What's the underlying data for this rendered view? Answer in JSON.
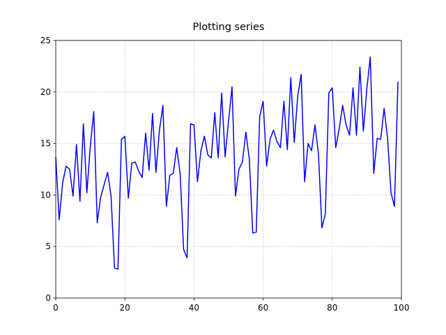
{
  "chart_data": {
    "type": "line",
    "title": "Plotting series",
    "x": [
      0,
      1,
      2,
      3,
      4,
      5,
      6,
      7,
      8,
      9,
      10,
      11,
      12,
      13,
      14,
      15,
      16,
      17,
      18,
      19,
      20,
      21,
      22,
      23,
      24,
      25,
      26,
      27,
      28,
      29,
      30,
      31,
      32,
      33,
      34,
      35,
      36,
      37,
      38,
      39,
      40,
      41,
      42,
      43,
      44,
      45,
      46,
      47,
      48,
      49,
      50,
      51,
      52,
      53,
      54,
      55,
      56,
      57,
      58,
      59,
      60,
      61,
      62,
      63,
      64,
      65,
      66,
      67,
      68,
      69,
      70,
      71,
      72,
      73,
      74,
      75,
      76,
      77,
      78,
      79,
      80,
      81,
      82,
      83,
      84,
      85,
      86,
      87,
      88,
      89,
      90,
      91,
      92,
      93,
      94,
      95,
      96,
      97,
      98,
      99
    ],
    "values": [
      13.7,
      7.6,
      11.2,
      12.8,
      12.5,
      9.9,
      14.9,
      9.4,
      16.9,
      10.2,
      14.8,
      18.1,
      7.3,
      9.8,
      11.0,
      12.2,
      9.9,
      2.9,
      2.8,
      15.4,
      15.7,
      9.7,
      13.1,
      13.2,
      12.3,
      11.7,
      16.0,
      12.4,
      17.9,
      12.2,
      16.3,
      18.7,
      8.9,
      11.9,
      12.1,
      14.6,
      12.0,
      4.7,
      3.9,
      16.9,
      16.8,
      11.3,
      14.3,
      15.7,
      13.9,
      13.6,
      18.0,
      13.6,
      19.9,
      13.7,
      17.2,
      20.5,
      9.9,
      12.5,
      13.2,
      16.1,
      13.5,
      6.3,
      6.4,
      17.6,
      19.1,
      12.8,
      15.4,
      16.3,
      15.2,
      14.6,
      19.1,
      14.4,
      21.4,
      15.1,
      19.6,
      21.7,
      11.3,
      15.0,
      14.3,
      16.8,
      14.0,
      6.8,
      8.2,
      19.9,
      20.4,
      14.6,
      16.4,
      18.7,
      16.8,
      15.8,
      20.4,
      15.8,
      22.4,
      16.2,
      20.3,
      23.4,
      12.1,
      15.5,
      15.4,
      18.4,
      15.5,
      10.2,
      8.9,
      21.0
    ],
    "color": "#0000ff",
    "xlim": [
      0,
      100
    ],
    "xticks": [
      0,
      20,
      40,
      60,
      80,
      100
    ],
    "ylim": [
      0,
      25
    ],
    "yticks": [
      0,
      5,
      10,
      15,
      20,
      25
    ],
    "grid": true
  }
}
